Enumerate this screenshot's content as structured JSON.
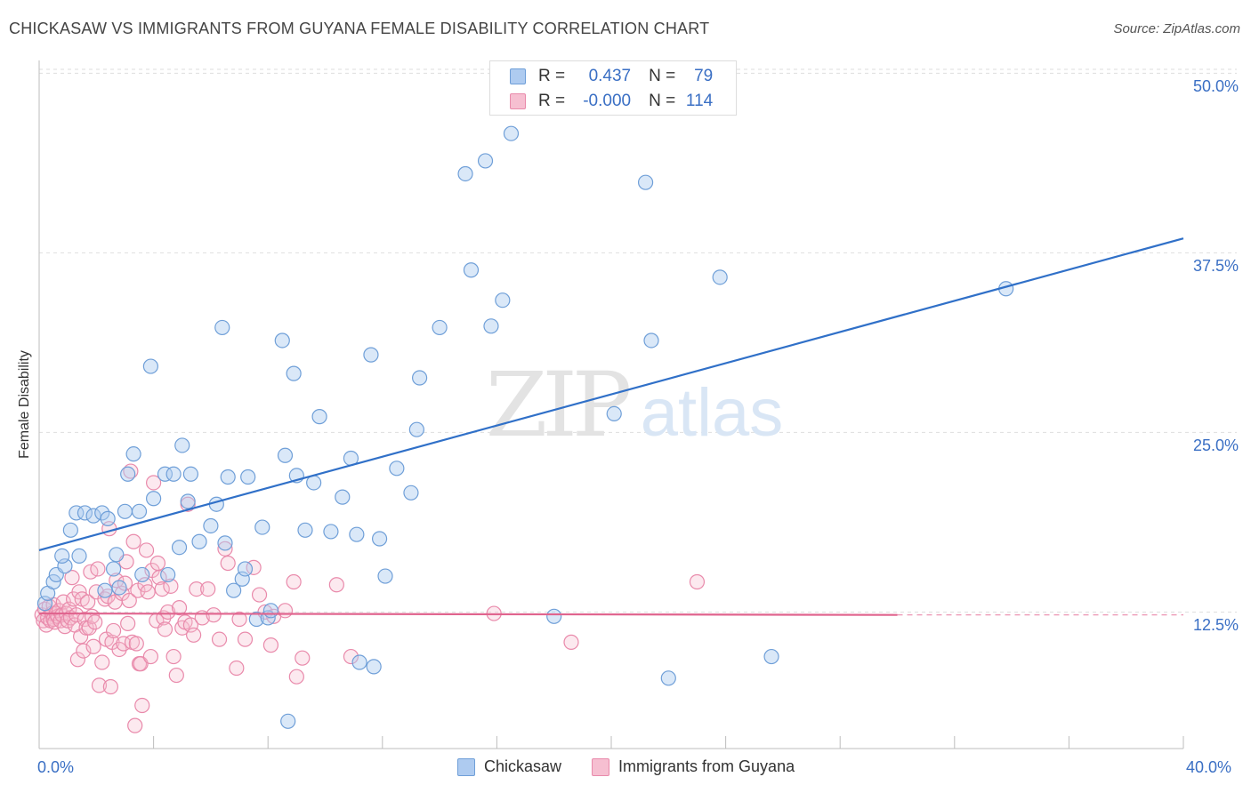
{
  "header": {
    "title": "CHICKASAW VS IMMIGRANTS FROM GUYANA FEMALE DISABILITY CORRELATION CHART",
    "source": "Source: ZipAtlas.com"
  },
  "legend_top": {
    "rows": [
      {
        "r_label": "R =",
        "r_value": "0.437",
        "n_label": "N =",
        "n_value": "79"
      },
      {
        "r_label": "R =",
        "r_value": "-0.000",
        "n_label": "N =",
        "n_value": "114"
      }
    ]
  },
  "watermark": {
    "zip": "ZIP",
    "atlas": "atlas"
  },
  "colors": {
    "blue_fill": "#aecbf0",
    "blue_stroke": "#6f9fd8",
    "blue_line": "#3070c8",
    "pink_fill": "#f6bfd1",
    "pink_stroke": "#e98aab",
    "pink_line": "#e0648e",
    "tick_text": "#3a6fc4",
    "grid": "#dedede"
  },
  "chart_data": {
    "type": "scatter",
    "title": "CHICKASAW VS IMMIGRANTS FROM GUYANA FEMALE DISABILITY CORRELATION CHART",
    "xlabel": "",
    "ylabel": "Female Disability",
    "xlim": [
      0,
      40
    ],
    "ylim": [
      3,
      52
    ],
    "x_tick_labels": {
      "min": "0.0%",
      "max": "40.0%"
    },
    "y_ticks": [
      {
        "value": 12.5,
        "label": "12.5%"
      },
      {
        "value": 25.0,
        "label": "25.0%"
      },
      {
        "value": 37.5,
        "label": "37.5%"
      },
      {
        "value": 50.0,
        "label": "50.0%"
      }
    ],
    "grid": true,
    "legend_position": "bottom-center",
    "series": [
      {
        "name": "Chickasaw",
        "points": [
          [
            0.2,
            13.1
          ],
          [
            0.3,
            13.8
          ],
          [
            0.5,
            14.6
          ],
          [
            0.6,
            15.1
          ],
          [
            0.9,
            15.7
          ],
          [
            0.8,
            16.4
          ],
          [
            1.4,
            16.4
          ],
          [
            1.1,
            18.2
          ],
          [
            1.3,
            19.4
          ],
          [
            1.6,
            19.4
          ],
          [
            1.9,
            19.2
          ],
          [
            2.2,
            19.4
          ],
          [
            2.4,
            19.0
          ],
          [
            2.7,
            16.5
          ],
          [
            2.6,
            15.5
          ],
          [
            2.3,
            14.0
          ],
          [
            2.8,
            14.2
          ],
          [
            3.0,
            19.5
          ],
          [
            3.5,
            19.5
          ],
          [
            3.1,
            22.1
          ],
          [
            3.3,
            23.5
          ],
          [
            3.6,
            15.1
          ],
          [
            4.0,
            20.4
          ],
          [
            3.9,
            29.6
          ],
          [
            4.4,
            22.1
          ],
          [
            4.5,
            15.1
          ],
          [
            4.7,
            22.1
          ],
          [
            4.9,
            17.0
          ],
          [
            5.0,
            24.1
          ],
          [
            5.2,
            20.2
          ],
          [
            5.3,
            22.1
          ],
          [
            5.6,
            17.4
          ],
          [
            6.0,
            18.5
          ],
          [
            6.2,
            20.0
          ],
          [
            6.4,
            32.3
          ],
          [
            6.5,
            17.3
          ],
          [
            6.6,
            21.9
          ],
          [
            6.8,
            14.0
          ],
          [
            7.1,
            14.8
          ],
          [
            7.2,
            15.5
          ],
          [
            7.3,
            21.9
          ],
          [
            7.6,
            12.0
          ],
          [
            7.8,
            18.4
          ],
          [
            8.0,
            12.1
          ],
          [
            8.1,
            12.6
          ],
          [
            8.5,
            31.4
          ],
          [
            8.6,
            23.4
          ],
          [
            8.7,
            4.9
          ],
          [
            8.9,
            29.1
          ],
          [
            9.0,
            22.0
          ],
          [
            9.3,
            18.2
          ],
          [
            9.6,
            21.5
          ],
          [
            9.8,
            26.1
          ],
          [
            10.2,
            18.1
          ],
          [
            10.6,
            20.5
          ],
          [
            10.9,
            23.2
          ],
          [
            11.1,
            17.9
          ],
          [
            11.2,
            9.0
          ],
          [
            11.6,
            30.4
          ],
          [
            11.7,
            8.7
          ],
          [
            11.9,
            17.6
          ],
          [
            12.1,
            15.0
          ],
          [
            12.5,
            22.5
          ],
          [
            13.0,
            20.8
          ],
          [
            13.2,
            25.2
          ],
          [
            13.3,
            28.8
          ],
          [
            14.0,
            32.3
          ],
          [
            14.9,
            43.0
          ],
          [
            15.1,
            36.3
          ],
          [
            15.6,
            43.9
          ],
          [
            15.8,
            32.4
          ],
          [
            16.2,
            34.2
          ],
          [
            16.5,
            45.8
          ],
          [
            18.0,
            12.2
          ],
          [
            20.1,
            26.3
          ],
          [
            21.4,
            31.4
          ],
          [
            21.2,
            42.4
          ],
          [
            22.0,
            7.9
          ],
          [
            23.8,
            35.8
          ],
          [
            25.6,
            9.4
          ],
          [
            33.8,
            35.0
          ]
        ],
        "trend": {
          "x": [
            0,
            40
          ],
          "y": [
            16.8,
            38.5
          ]
        }
      },
      {
        "name": "Immigrants from Guyana",
        "points": [
          [
            0.1,
            12.3
          ],
          [
            0.15,
            11.9
          ],
          [
            0.2,
            12.7
          ],
          [
            0.25,
            11.6
          ],
          [
            0.3,
            12.1
          ],
          [
            0.35,
            12.9
          ],
          [
            0.4,
            11.9
          ],
          [
            0.45,
            12.4
          ],
          [
            0.5,
            12.0
          ],
          [
            0.5,
            13.0
          ],
          [
            0.55,
            11.8
          ],
          [
            0.6,
            12.4
          ],
          [
            0.65,
            12.2
          ],
          [
            0.7,
            12.6
          ],
          [
            0.75,
            11.9
          ],
          [
            0.8,
            12.3
          ],
          [
            0.85,
            13.2
          ],
          [
            0.9,
            11.5
          ],
          [
            0.95,
            12.4
          ],
          [
            1.0,
            11.9
          ],
          [
            1.05,
            12.7
          ],
          [
            1.1,
            12.1
          ],
          [
            1.15,
            14.9
          ],
          [
            1.2,
            13.4
          ],
          [
            1.25,
            11.6
          ],
          [
            1.3,
            12.3
          ],
          [
            1.35,
            9.2
          ],
          [
            1.4,
            13.9
          ],
          [
            1.45,
            10.8
          ],
          [
            1.5,
            13.4
          ],
          [
            1.55,
            9.8
          ],
          [
            1.6,
            12.0
          ],
          [
            1.65,
            11.4
          ],
          [
            1.7,
            13.2
          ],
          [
            1.75,
            11.4
          ],
          [
            1.8,
            15.3
          ],
          [
            1.85,
            12.2
          ],
          [
            1.9,
            10.1
          ],
          [
            1.95,
            11.8
          ],
          [
            2.0,
            13.9
          ],
          [
            2.05,
            15.5
          ],
          [
            2.1,
            7.4
          ],
          [
            2.2,
            9.0
          ],
          [
            2.3,
            13.4
          ],
          [
            2.35,
            10.6
          ],
          [
            2.4,
            13.6
          ],
          [
            2.45,
            18.3
          ],
          [
            2.5,
            7.3
          ],
          [
            2.55,
            10.4
          ],
          [
            2.6,
            11.2
          ],
          [
            2.65,
            13.2
          ],
          [
            2.7,
            14.7
          ],
          [
            2.8,
            9.9
          ],
          [
            2.9,
            13.8
          ],
          [
            2.95,
            10.3
          ],
          [
            3.0,
            14.5
          ],
          [
            3.05,
            16.0
          ],
          [
            3.1,
            11.7
          ],
          [
            3.15,
            13.3
          ],
          [
            3.2,
            22.3
          ],
          [
            3.25,
            10.4
          ],
          [
            3.3,
            17.4
          ],
          [
            3.35,
            4.6
          ],
          [
            3.4,
            10.3
          ],
          [
            3.45,
            14.0
          ],
          [
            3.5,
            8.9
          ],
          [
            3.55,
            8.9
          ],
          [
            3.6,
            6.0
          ],
          [
            3.7,
            14.4
          ],
          [
            3.75,
            16.8
          ],
          [
            3.8,
            13.9
          ],
          [
            3.9,
            9.4
          ],
          [
            3.95,
            15.4
          ],
          [
            4.0,
            21.5
          ],
          [
            4.1,
            11.9
          ],
          [
            4.15,
            15.9
          ],
          [
            4.2,
            14.9
          ],
          [
            4.3,
            14.1
          ],
          [
            4.35,
            12.1
          ],
          [
            4.4,
            11.3
          ],
          [
            4.5,
            12.5
          ],
          [
            4.6,
            14.3
          ],
          [
            4.7,
            9.4
          ],
          [
            4.8,
            8.1
          ],
          [
            4.9,
            12.8
          ],
          [
            5.0,
            11.4
          ],
          [
            5.1,
            11.8
          ],
          [
            5.2,
            20.0
          ],
          [
            5.3,
            11.6
          ],
          [
            5.4,
            10.9
          ],
          [
            5.5,
            14.1
          ],
          [
            5.7,
            12.1
          ],
          [
            5.9,
            14.1
          ],
          [
            6.1,
            12.3
          ],
          [
            6.3,
            10.6
          ],
          [
            6.5,
            16.9
          ],
          [
            6.6,
            15.9
          ],
          [
            6.9,
            8.6
          ],
          [
            7.0,
            12.0
          ],
          [
            7.2,
            10.6
          ],
          [
            7.5,
            15.6
          ],
          [
            7.7,
            13.7
          ],
          [
            7.9,
            12.5
          ],
          [
            8.1,
            10.2
          ],
          [
            8.2,
            12.2
          ],
          [
            8.6,
            12.6
          ],
          [
            8.9,
            14.6
          ],
          [
            9.0,
            8.0
          ],
          [
            9.2,
            9.3
          ],
          [
            10.4,
            14.4
          ],
          [
            10.9,
            9.4
          ],
          [
            15.9,
            12.4
          ],
          [
            18.6,
            10.4
          ],
          [
            23.0,
            14.6
          ]
        ],
        "trend": {
          "x": [
            0,
            30
          ],
          "y": [
            12.4,
            12.3
          ]
        },
        "trend_dashed": {
          "x": [
            30,
            40
          ],
          "y": [
            12.3,
            12.3
          ]
        }
      }
    ]
  },
  "bottom_legend": {
    "items": [
      {
        "label": "Chickasaw"
      },
      {
        "label": "Immigrants from Guyana"
      }
    ]
  }
}
